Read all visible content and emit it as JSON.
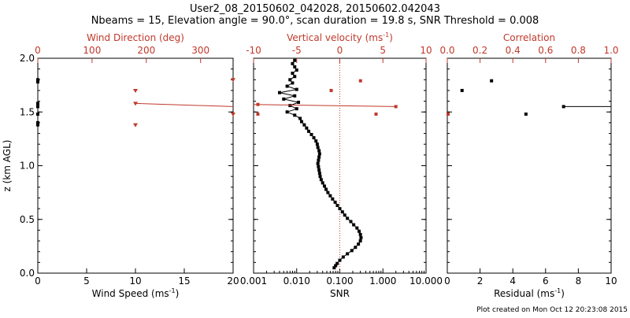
{
  "title_line1": "User2_08_20150602_042028, 20150602.042043",
  "title_line2": "Nbeams = 15, Elevation angle = 90.0°, scan duration = 19.8 s, SNR Threshold = 0.008",
  "footer": "Plot created on Mon Oct 12 20:23:08 2015",
  "colors": {
    "axis": "#000000",
    "red": "#c0392b"
  },
  "chart_data": [
    {
      "type": "scatter",
      "panel": "left",
      "ylabel": "z (km AGL)",
      "ylim": [
        0,
        2
      ],
      "yticks": [
        "0.0",
        "0.5",
        "1.0",
        "1.5",
        "2.0"
      ],
      "xlabel": "Wind Speed (ms",
      "xlabel_sup": "-1",
      "xlabel_end": ")",
      "xlim": [
        0,
        20
      ],
      "xticks": [
        "0",
        "5",
        "10",
        "15",
        "20"
      ],
      "top_label": "Wind Direction (deg)",
      "top_xlim": [
        0,
        360
      ],
      "top_ticks": [
        "0",
        "100",
        "200",
        "300"
      ],
      "speed_points": [
        [
          0,
          1.8
        ],
        [
          0,
          1.78
        ],
        [
          0,
          1.58
        ],
        [
          0,
          1.55
        ],
        [
          0,
          1.48
        ],
        [
          0,
          1.4
        ],
        [
          0,
          1.38
        ]
      ],
      "direction_points": [
        [
          180,
          1.7
        ],
        [
          180,
          1.58
        ],
        [
          180,
          1.38
        ],
        [
          360,
          1.8
        ],
        [
          360,
          1.48
        ]
      ],
      "direction_line": [
        [
          180,
          1.58
        ],
        [
          360,
          1.55
        ]
      ]
    },
    {
      "type": "line",
      "panel": "middle",
      "xlabel": "SNR",
      "xscale": "log",
      "xlim": [
        0.001,
        10
      ],
      "xticks": [
        "0.001",
        "0.010",
        "0.100",
        "1.000",
        "10.000"
      ],
      "ylim": [
        0,
        2
      ],
      "top_label": "Vertical velocity (ms",
      "top_label_sup": "-1",
      "top_label_end": ")",
      "top_xlim": [
        -10,
        10
      ],
      "top_ticks": [
        "-10",
        "-5",
        "0",
        "5",
        "10"
      ],
      "zero_reference": 0,
      "snr_profile": [
        [
          0.074,
          0.05
        ],
        [
          0.08,
          0.07
        ],
        [
          0.087,
          0.09
        ],
        [
          0.1,
          0.12
        ],
        [
          0.12,
          0.15
        ],
        [
          0.15,
          0.18
        ],
        [
          0.19,
          0.21
        ],
        [
          0.23,
          0.24
        ],
        [
          0.27,
          0.27
        ],
        [
          0.3,
          0.3
        ],
        [
          0.31,
          0.33
        ],
        [
          0.3,
          0.36
        ],
        [
          0.28,
          0.39
        ],
        [
          0.25,
          0.42
        ],
        [
          0.21,
          0.45
        ],
        [
          0.18,
          0.48
        ],
        [
          0.15,
          0.51
        ],
        [
          0.13,
          0.54
        ],
        [
          0.115,
          0.57
        ],
        [
          0.1,
          0.6
        ],
        [
          0.088,
          0.63
        ],
        [
          0.078,
          0.66
        ],
        [
          0.068,
          0.69
        ],
        [
          0.06,
          0.72
        ],
        [
          0.053,
          0.75
        ],
        [
          0.048,
          0.78
        ],
        [
          0.044,
          0.81
        ],
        [
          0.04,
          0.84
        ],
        [
          0.037,
          0.87
        ],
        [
          0.035,
          0.9
        ],
        [
          0.034,
          0.93
        ],
        [
          0.033,
          0.96
        ],
        [
          0.032,
          0.99
        ],
        [
          0.031,
          1.02
        ],
        [
          0.032,
          1.05
        ],
        [
          0.033,
          1.08
        ],
        [
          0.034,
          1.11
        ],
        [
          0.033,
          1.14
        ],
        [
          0.031,
          1.17
        ],
        [
          0.03,
          1.2
        ],
        [
          0.028,
          1.23
        ],
        [
          0.025,
          1.26
        ],
        [
          0.022,
          1.29
        ],
        [
          0.019,
          1.32
        ],
        [
          0.017,
          1.35
        ],
        [
          0.015,
          1.38
        ],
        [
          0.013,
          1.41
        ],
        [
          0.012,
          1.44
        ],
        [
          0.009,
          1.47
        ],
        [
          0.006,
          1.5
        ],
        [
          0.01,
          1.53
        ],
        [
          0.007,
          1.56
        ],
        [
          0.011,
          1.59
        ],
        [
          0.005,
          1.62
        ],
        [
          0.009,
          1.65
        ],
        [
          0.004,
          1.68
        ],
        [
          0.01,
          1.71
        ],
        [
          0.006,
          1.74
        ],
        [
          0.008,
          1.77
        ],
        [
          0.007,
          1.8
        ],
        [
          0.009,
          1.83
        ],
        [
          0.008,
          1.86
        ],
        [
          0.01,
          1.89
        ],
        [
          0.009,
          1.92
        ],
        [
          0.008,
          1.95
        ],
        [
          0.009,
          1.98
        ]
      ],
      "vertical_velocity_points": [
        [
          -9.5,
          1.48
        ],
        [
          -9.5,
          1.57
        ],
        [
          -1.0,
          1.7
        ],
        [
          2.4,
          1.79
        ],
        [
          4.2,
          1.48
        ],
        [
          6.5,
          1.55
        ]
      ],
      "vertical_velocity_line": [
        [
          -10,
          1.57
        ],
        [
          6.5,
          1.55
        ]
      ]
    },
    {
      "type": "scatter",
      "panel": "right",
      "xlabel": "Residual (ms",
      "xlabel_sup": "-1",
      "xlabel_end": ")",
      "xlim": [
        0,
        10
      ],
      "xticks": [
        "0",
        "2",
        "4",
        "6",
        "8",
        "10"
      ],
      "ylim": [
        0,
        2
      ],
      "top_label": "Correlation",
      "top_xlim": [
        0,
        1
      ],
      "top_ticks": [
        "0.0",
        "0.2",
        "0.4",
        "0.6",
        "0.8",
        "1.0"
      ],
      "residual_points": [
        [
          0.9,
          1.7
        ],
        [
          2.7,
          1.79
        ],
        [
          4.8,
          1.48
        ],
        [
          7.1,
          1.55
        ]
      ],
      "residual_line": [
        [
          7.1,
          1.55
        ],
        [
          10,
          1.55
        ]
      ],
      "correlation_points": [
        [
          0.0,
          1.48
        ]
      ]
    }
  ]
}
